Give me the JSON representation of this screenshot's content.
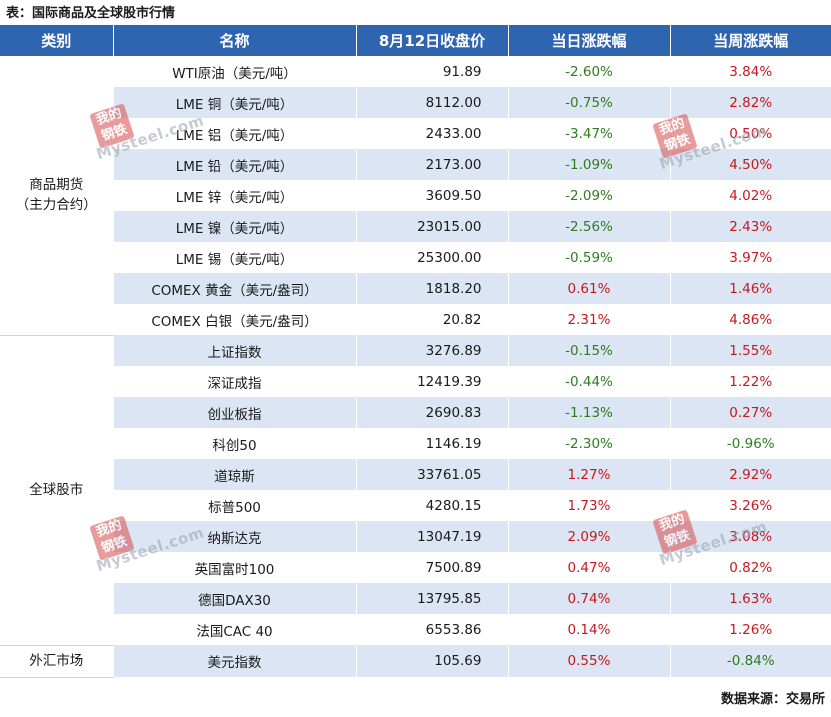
{
  "caption": "表：国际商品及全球股市行情",
  "headers": {
    "category": "类别",
    "name": "名称",
    "close": "8月12日收盘价",
    "daily": "当日涨跌幅",
    "weekly": "当周涨跌幅"
  },
  "groups": [
    {
      "category_line1": "商品期货",
      "category_line2": "（主力合约）",
      "rows": [
        {
          "name": "WTI原油（美元/吨）",
          "close": "91.89",
          "daily": "-2.60%",
          "weekly": "3.84%"
        },
        {
          "name": "LME 铜（美元/吨）",
          "close": "8112.00",
          "daily": "-0.75%",
          "weekly": "2.82%"
        },
        {
          "name": "LME 铝（美元/吨）",
          "close": "2433.00",
          "daily": "-3.47%",
          "weekly": "0.50%"
        },
        {
          "name": "LME 铅（美元/吨）",
          "close": "2173.00",
          "daily": "-1.09%",
          "weekly": "4.50%"
        },
        {
          "name": "LME 锌（美元/吨）",
          "close": "3609.50",
          "daily": "-2.09%",
          "weekly": "4.02%"
        },
        {
          "name": "LME 镍（美元/吨）",
          "close": "23015.00",
          "daily": "-2.56%",
          "weekly": "2.43%"
        },
        {
          "name": "LME 锡（美元/吨）",
          "close": "25300.00",
          "daily": "-0.59%",
          "weekly": "3.97%"
        },
        {
          "name": "COMEX 黄金（美元/盎司）",
          "close": "1818.20",
          "daily": "0.61%",
          "weekly": "1.46%"
        },
        {
          "name": "COMEX 白银（美元/盎司）",
          "close": "20.82",
          "daily": "2.31%",
          "weekly": "4.86%"
        }
      ]
    },
    {
      "category_line1": "全球股市",
      "category_line2": "",
      "rows": [
        {
          "name": "上证指数",
          "close": "3276.89",
          "daily": "-0.15%",
          "weekly": "1.55%"
        },
        {
          "name": "深证成指",
          "close": "12419.39",
          "daily": "-0.44%",
          "weekly": "1.22%"
        },
        {
          "name": "创业板指",
          "close": "2690.83",
          "daily": "-1.13%",
          "weekly": "0.27%"
        },
        {
          "name": "科创50",
          "close": "1146.19",
          "daily": "-2.30%",
          "weekly": "-0.96%"
        },
        {
          "name": "道琼斯",
          "close": "33761.05",
          "daily": "1.27%",
          "weekly": "2.92%"
        },
        {
          "name": "标普500",
          "close": "4280.15",
          "daily": "1.73%",
          "weekly": "3.26%"
        },
        {
          "name": "纳斯达克",
          "close": "13047.19",
          "daily": "2.09%",
          "weekly": "3.08%"
        },
        {
          "name": "英国富时100",
          "close": "7500.89",
          "daily": "0.47%",
          "weekly": "0.82%"
        },
        {
          "name": "德国DAX30",
          "close": "13795.85",
          "daily": "0.74%",
          "weekly": "1.63%"
        },
        {
          "name": "法国CAC 40",
          "close": "6553.86",
          "daily": "0.14%",
          "weekly": "1.26%"
        }
      ]
    },
    {
      "category_line1": "外汇市场",
      "category_line2": "",
      "rows": [
        {
          "name": "美元指数",
          "close": "105.69",
          "daily": "0.55%",
          "weekly": "-0.84%"
        }
      ]
    }
  ],
  "source": "数据来源：交易所",
  "watermark": {
    "seal_text_line1": "我的",
    "seal_text_line2": "钢铁",
    "brand_text": "Mysteel.com"
  },
  "colors": {
    "header_bg": "#2f64b0",
    "row_shade": "#dbe5f3",
    "negative": "#2e7d1e",
    "positive": "#c8171e"
  }
}
